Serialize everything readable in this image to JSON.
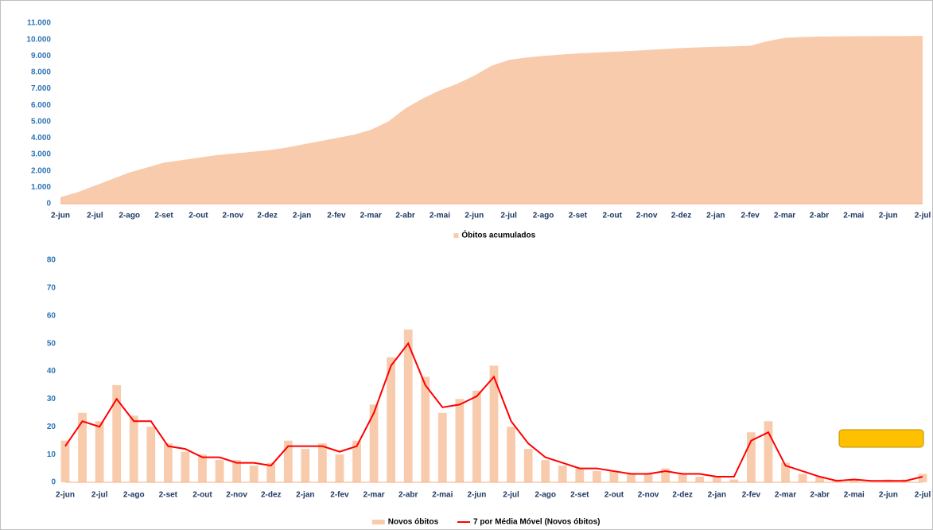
{
  "chart_data": [
    {
      "type": "area",
      "categories": [
        "2-jun",
        null,
        "2-jul",
        null,
        "2-ago",
        null,
        "2-set",
        null,
        "2-out",
        null,
        "2-nov",
        null,
        "2-dez",
        null,
        "2-jan",
        null,
        "2-fev",
        null,
        "2-mar",
        null,
        "2-abr",
        null,
        "2-mai",
        null,
        "2-jun",
        null,
        "2-jul",
        null,
        "2-ago",
        null,
        "2-set",
        null,
        "2-out",
        null,
        "2-nov",
        null,
        "2-dez",
        null,
        "2-jan",
        null,
        "2-fev",
        null,
        "2-mar",
        null,
        "2-abr",
        null,
        "2-mai",
        null,
        "2-jun",
        null,
        "2-jul"
      ],
      "series": [
        {
          "name": "Óbitos acumulados",
          "color": "#f8cbad",
          "values": [
            400,
            700,
            1100,
            1500,
            1900,
            2200,
            2500,
            2650,
            2800,
            2950,
            3050,
            3150,
            3250,
            3400,
            3600,
            3800,
            4000,
            4200,
            4500,
            5000,
            5800,
            6400,
            6900,
            7300,
            7800,
            8400,
            8750,
            8900,
            9000,
            9080,
            9150,
            9200,
            9250,
            9300,
            9360,
            9420,
            9480,
            9520,
            9560,
            9580,
            9620,
            9900,
            10100,
            10150,
            10180,
            10190,
            10200,
            10200,
            10210,
            10210,
            10220
          ]
        }
      ],
      "ylim": [
        0,
        11000
      ],
      "yticks": [
        0,
        {
          "value": 1000,
          "label": "1.000"
        },
        {
          "value": 2000,
          "label": "2.000"
        },
        {
          "value": 3000,
          "label": "3.000"
        },
        {
          "value": 4000,
          "label": "4.000"
        },
        {
          "value": 5000,
          "label": "5.000"
        },
        {
          "value": 6000,
          "label": "6.000"
        },
        {
          "value": 7000,
          "label": "7.000"
        },
        {
          "value": 8000,
          "label": "8.000"
        },
        {
          "value": 9000,
          "label": "9.000"
        },
        {
          "value": 10000,
          "label": "10.000"
        },
        {
          "value": 11000,
          "label": "11.000"
        }
      ],
      "legend": "bottom"
    },
    {
      "type": "bar",
      "categories": [
        "2-jun",
        null,
        "2-jul",
        null,
        "2-ago",
        null,
        "2-set",
        null,
        "2-out",
        null,
        "2-nov",
        null,
        "2-dez",
        null,
        "2-jan",
        null,
        "2-fev",
        null,
        "2-mar",
        null,
        "2-abr",
        null,
        "2-mai",
        null,
        "2-jun",
        null,
        "2-jul",
        null,
        "2-ago",
        null,
        "2-set",
        null,
        "2-out",
        null,
        "2-nov",
        null,
        "2-dez",
        null,
        "2-jan",
        null,
        "2-fev",
        null,
        "2-mar",
        null,
        "2-abr",
        null,
        "2-mai",
        null,
        "2-jun",
        null,
        "2-jul"
      ],
      "series": [
        {
          "name": "Novos óbitos",
          "type": "bar",
          "color": "#f8cbad",
          "values": [
            15,
            25,
            22,
            35,
            24,
            20,
            14,
            11,
            10,
            8,
            8,
            6,
            7,
            15,
            12,
            14,
            10,
            15,
            28,
            45,
            55,
            38,
            25,
            30,
            33,
            42,
            20,
            12,
            8,
            6,
            5,
            4,
            4,
            3,
            3,
            5,
            3,
            2,
            2,
            1,
            18,
            22,
            7,
            3,
            2,
            1,
            1,
            0,
            1,
            1,
            3
          ]
        },
        {
          "name": "7 por Média Móvel (Novos óbitos)",
          "type": "line",
          "color": "#ff0000",
          "values": [
            13,
            22,
            20,
            30,
            22,
            22,
            13,
            12,
            9,
            9,
            7,
            7,
            6,
            13,
            13,
            13,
            11,
            13,
            25,
            42,
            50,
            35,
            27,
            28,
            31,
            38,
            22,
            14,
            9,
            7,
            5,
            5,
            4,
            3,
            3,
            4,
            3,
            3,
            2,
            2,
            15,
            18,
            6,
            4,
            2,
            0.5,
            1,
            0.5,
            0.5,
            0.5,
            2
          ]
        }
      ],
      "ylim": [
        0,
        80
      ],
      "yticks": [
        0,
        10,
        20,
        30,
        40,
        50,
        60,
        70,
        80
      ],
      "legend": "bottom"
    }
  ]
}
